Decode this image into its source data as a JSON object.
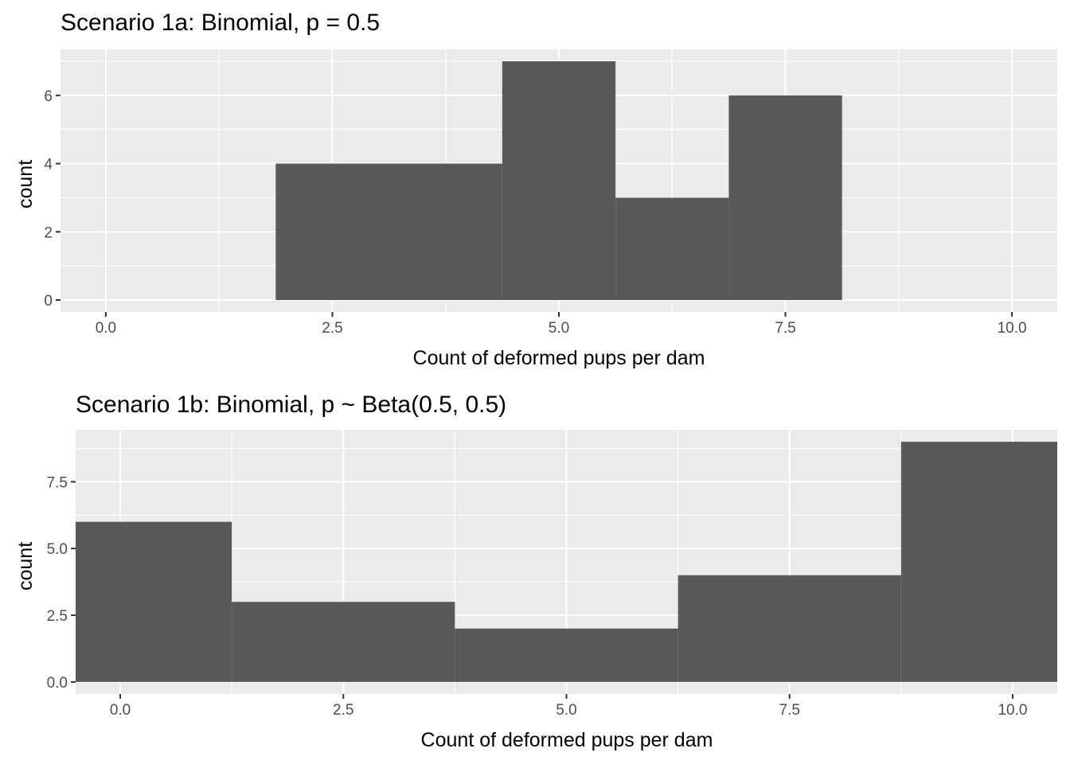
{
  "chart_data": [
    {
      "type": "bar",
      "title": "Scenario 1a: Binomial, p = 0.5",
      "xlabel": "Count of deformed pups per dam",
      "ylabel": "count",
      "xlim": [
        -0.5,
        10.5
      ],
      "ylim": [
        -0.35,
        7.35
      ],
      "x_ticks": [
        0,
        2.5,
        5,
        7.5,
        10
      ],
      "x_tick_labels": [
        "0.0",
        "2.5",
        "5.0",
        "7.5",
        "10.0"
      ],
      "y_ticks": [
        0,
        2,
        4,
        6
      ],
      "y_tick_labels": [
        "0",
        "2",
        "4",
        "6"
      ],
      "bins": [
        {
          "xmin": 1.875,
          "xmax": 4.375,
          "count": 4
        },
        {
          "xmin": 4.375,
          "xmax": 5.625,
          "count": 7
        },
        {
          "xmin": 5.625,
          "xmax": 6.875,
          "count": 3
        },
        {
          "xmin": 6.875,
          "xmax": 8.125,
          "count": 6
        }
      ],
      "bar_color": "#595959",
      "panel_color": "#EBEBEB",
      "grid": true
    },
    {
      "type": "bar",
      "title": "Scenario 1b: Binomial, p ~ Beta(0.5, 0.5)",
      "xlabel": "Count of deformed pups per dam",
      "ylabel": "count",
      "xlim": [
        -0.5,
        10.5
      ],
      "ylim": [
        -0.45,
        9.45
      ],
      "x_ticks": [
        0,
        2.5,
        5,
        7.5,
        10
      ],
      "x_tick_labels": [
        "0.0",
        "2.5",
        "5.0",
        "7.5",
        "10.0"
      ],
      "y_ticks": [
        0,
        2.5,
        5,
        7.5
      ],
      "y_tick_labels": [
        "0.0",
        "2.5",
        "5.0",
        "7.5"
      ],
      "bins": [
        {
          "xmin": -0.5,
          "xmax": 1.25,
          "count": 6
        },
        {
          "xmin": 1.25,
          "xmax": 3.75,
          "count": 3
        },
        {
          "xmin": 3.75,
          "xmax": 6.25,
          "count": 2
        },
        {
          "xmin": 6.25,
          "xmax": 8.75,
          "count": 4
        },
        {
          "xmin": 8.75,
          "xmax": 10.5,
          "count": 9
        }
      ],
      "bar_color": "#595959",
      "panel_color": "#EBEBEB",
      "grid": true
    }
  ]
}
